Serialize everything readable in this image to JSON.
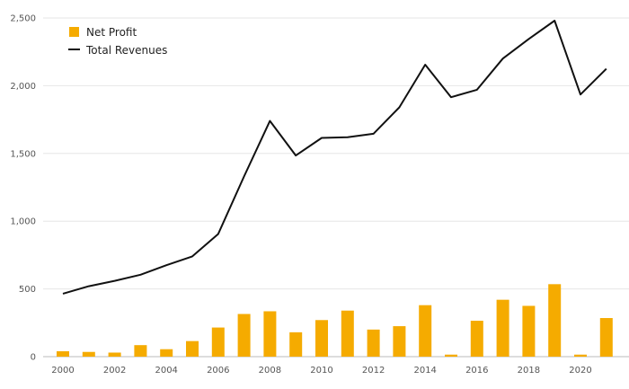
{
  "chart_data": {
    "type": "bar+line",
    "title": "",
    "xlabel": "",
    "ylabel": "",
    "ylim": [
      0,
      2500
    ],
    "yticks": [
      0,
      500,
      1000,
      1500,
      2000,
      2500
    ],
    "ytick_labels": [
      "0",
      "500",
      "1,000",
      "1,500",
      "2,000",
      "2,500"
    ],
    "xtick_labels": [
      "2000",
      "2002",
      "2004",
      "2006",
      "2008",
      "2010",
      "2012",
      "2014",
      "2016",
      "2018",
      "2020"
    ],
    "x": [
      2000,
      2001,
      2002,
      2003,
      2004,
      2005,
      2006,
      2007,
      2008,
      2009,
      2010,
      2011,
      2012,
      2013,
      2014,
      2015,
      2016,
      2017,
      2018,
      2019,
      2020,
      2021
    ],
    "grid": "horizontal",
    "legend_position": "top-left",
    "series": [
      {
        "name": "Net Profit",
        "kind": "bar",
        "color": "#f5ab00",
        "values": [
          40,
          35,
          30,
          85,
          55,
          115,
          215,
          315,
          335,
          180,
          270,
          340,
          200,
          225,
          380,
          15,
          265,
          420,
          375,
          535,
          15,
          285
        ]
      },
      {
        "name": "Total Revenues",
        "kind": "line",
        "color": "#111111",
        "values": [
          465,
          520,
          560,
          605,
          675,
          740,
          905,
          1330,
          1740,
          1485,
          1615,
          1620,
          1645,
          1840,
          2155,
          1915,
          1970,
          2200,
          2345,
          2480,
          1935,
          2125
        ]
      }
    ]
  }
}
